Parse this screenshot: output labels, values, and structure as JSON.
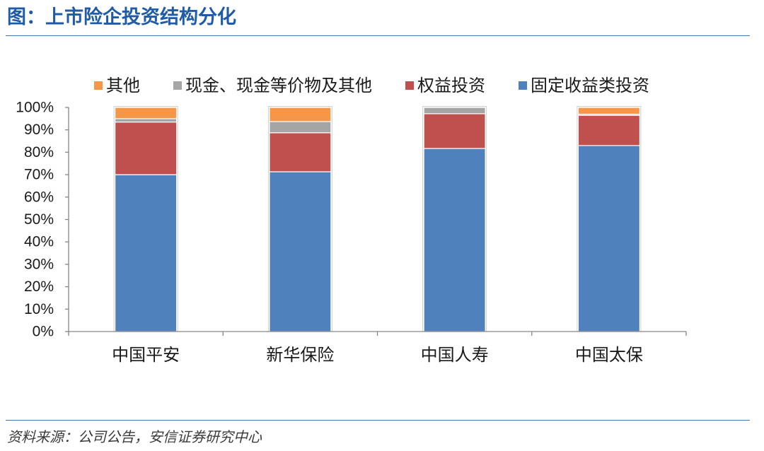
{
  "header": {
    "title": "图：上市险企投资结构分化"
  },
  "footer": {
    "source": "资料来源：公司公告，安信证券研究中心"
  },
  "theme": {
    "title_color": "#1F5BA6",
    "rule_color": "#4A76AD",
    "axis_color": "#868686"
  },
  "chart_data": {
    "type": "bar",
    "stacked": true,
    "categories": [
      "中国平安",
      "新华保险",
      "中国人寿",
      "中国太保"
    ],
    "series": [
      {
        "name": "其他",
        "color": "#F79646",
        "values": [
          5.0,
          6.3,
          0,
          3.0
        ]
      },
      {
        "name": "现金、现金等价物及其他",
        "color": "#A5A5A5",
        "values": [
          1.5,
          5.0,
          2.8,
          0.5
        ]
      },
      {
        "name": "权益投资",
        "color": "#C0504D",
        "values": [
          23.5,
          17.4,
          15.5,
          13.5
        ]
      },
      {
        "name": "固定收益类投资",
        "color": "#4F81BD",
        "values": [
          70.0,
          71.3,
          81.7,
          83.0
        ]
      }
    ],
    "unit": "%",
    "ylim": [
      0,
      100
    ],
    "yticks": [
      0,
      10,
      20,
      30,
      40,
      50,
      60,
      70,
      80,
      90,
      100
    ],
    "ytick_labels": [
      "0%",
      "10%",
      "20%",
      "30%",
      "40%",
      "50%",
      "60%",
      "70%",
      "80%",
      "90%",
      "100%"
    ],
    "legend": "top",
    "grid": false
  }
}
